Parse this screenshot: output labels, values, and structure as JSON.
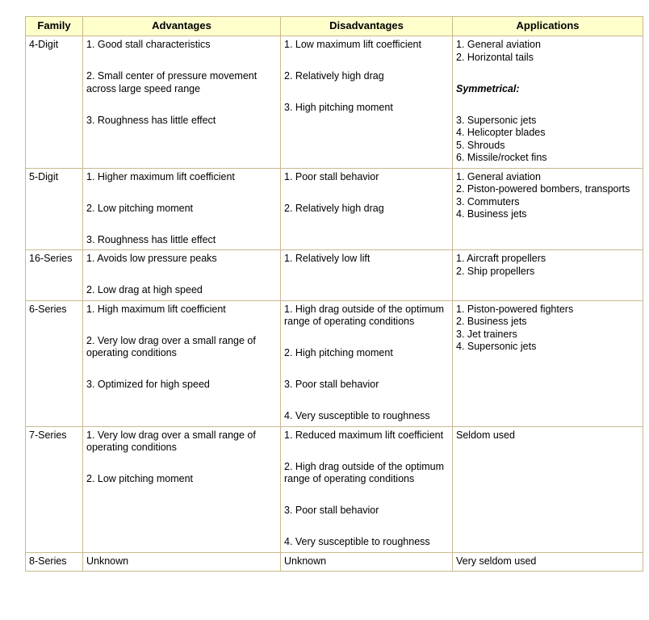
{
  "headers": [
    "Family",
    "Advantages",
    "Disadvantages",
    "Applications"
  ],
  "rows": [
    {
      "family": "4-Digit",
      "advantages": [
        "1. Good stall characteristics",
        "2. Small center of pressure movement across large speed range",
        "3. Roughness has little effect"
      ],
      "disadvantages": [
        "1. Low maximum lift coefficient",
        "2. Relatively high drag",
        "3. High pitching moment"
      ],
      "applications": [
        "1. General aviation\n2. Horizontal tails",
        "Symmetrical:",
        "3. Supersonic jets\n4. Helicopter blades\n5. Shrouds\n6. Missile/rocket fins"
      ]
    },
    {
      "family": "5-Digit",
      "advantages": [
        "1. Higher maximum lift coefficient",
        "2. Low pitching moment",
        "3. Roughness has little effect"
      ],
      "disadvantages": [
        "1. Poor stall behavior",
        "2. Relatively high drag"
      ],
      "applications": [
        "1. General aviation\n2. Piston-powered bombers, transports\n3. Commuters\n4. Business jets"
      ]
    },
    {
      "family": "16-Series",
      "advantages": [
        "1. Avoids low pressure peaks",
        "2. Low drag at high speed"
      ],
      "disadvantages": [
        "1. Relatively low lift"
      ],
      "applications": [
        "1. Aircraft propellers\n2. Ship propellers"
      ]
    },
    {
      "family": "6-Series",
      "advantages": [
        "1. High maximum lift coefficient",
        "2. Very low drag over a small range of operating conditions",
        "3. Optimized for high speed"
      ],
      "disadvantages": [
        "1. High drag outside of the optimum range of operating conditions",
        "2. High pitching moment",
        "3. Poor stall behavior",
        "4. Very susceptible to roughness"
      ],
      "applications": [
        "1. Piston-powered fighters\n2. Business jets\n3. Jet trainers\n4. Supersonic jets"
      ]
    },
    {
      "family": "7-Series",
      "advantages": [
        "1. Very low drag over a small range of operating conditions",
        "2. Low pitching moment"
      ],
      "disadvantages": [
        "1. Reduced maximum lift coefficient",
        "2. High drag outside of the optimum range of operating conditions",
        "3. Poor stall behavior",
        "4. Very susceptible to roughness"
      ],
      "applications": [
        "Seldom used"
      ]
    },
    {
      "family": "8-Series",
      "advantages": [
        "Unknown"
      ],
      "disadvantages": [
        "Unknown"
      ],
      "applications": [
        "Very seldom used"
      ]
    }
  ],
  "colors": {
    "header_bg": "#ffffcc",
    "border": "#c9b98f"
  }
}
